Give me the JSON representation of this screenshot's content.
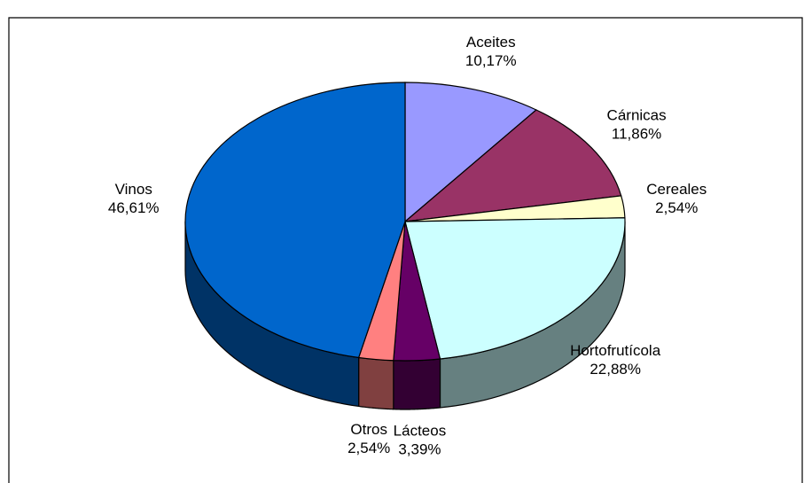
{
  "chart_data": {
    "type": "pie3d",
    "categories": [
      "Aceites",
      "Cárnicas",
      "Cereales",
      "Hortofrutícola",
      "Lácteos",
      "Otros",
      "Vinos"
    ],
    "values": [
      10.17,
      11.86,
      2.54,
      22.88,
      3.39,
      2.54,
      46.61
    ],
    "value_labels": [
      "10,17%",
      "11,86%",
      "2,54%",
      "22,88%",
      "3,39%",
      "2,54%",
      "46,61%"
    ],
    "colors": [
      "#9999ff",
      "#993366",
      "#ffffcc",
      "#ccffff",
      "#660066",
      "#ff8080",
      "#0066cc"
    ]
  }
}
